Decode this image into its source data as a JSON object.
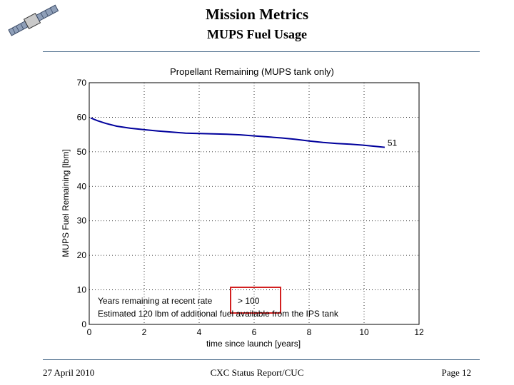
{
  "slide": {
    "title": "Mission Metrics",
    "subtitle": "MUPS Fuel Usage",
    "footer_left": "27 April 2010",
    "footer_center": "CXC Status Report/CUC",
    "footer_right": "Page 12",
    "logo_icon": "satellite-icon"
  },
  "colors": {
    "rule": "#4a6a8a",
    "series": "#00009c",
    "highlight_box": "#d22020",
    "grid": "#000000"
  },
  "chart_data": {
    "type": "line",
    "title": "Propellant Remaining (MUPS tank only)",
    "xlabel": "time since launch [years]",
    "ylabel": "MUPS Fuel Remaining [lbm]",
    "xlim": [
      0,
      12
    ],
    "ylim": [
      0,
      70
    ],
    "xticks": [
      0,
      2,
      4,
      6,
      8,
      10,
      12
    ],
    "yticks": [
      0,
      10,
      20,
      30,
      40,
      50,
      60,
      70
    ],
    "xtick_labels": [
      "0",
      "2",
      "4",
      "6",
      "8",
      "10",
      "12"
    ],
    "ytick_labels": [
      "0",
      "10",
      "20",
      "30",
      "40",
      "50",
      "60",
      "70"
    ],
    "grid": true,
    "series": [
      {
        "name": "MUPS fuel remaining",
        "x": [
          0.05,
          0.3,
          0.6,
          1.0,
          1.5,
          2.0,
          2.5,
          3.0,
          3.5,
          4.0,
          4.5,
          5.0,
          5.5,
          6.0,
          6.5,
          7.0,
          7.5,
          8.0,
          8.5,
          9.0,
          9.5,
          10.0,
          10.5,
          10.75
        ],
        "y": [
          59.8,
          59.0,
          58.2,
          57.4,
          56.8,
          56.4,
          56.0,
          55.7,
          55.4,
          55.3,
          55.2,
          55.1,
          54.9,
          54.6,
          54.3,
          54.0,
          53.6,
          53.1,
          52.7,
          52.4,
          52.2,
          51.9,
          51.5,
          51.3
        ]
      }
    ],
    "end_label": "51",
    "annotations": {
      "line1_prefix": "Years remaining at recent rate",
      "line1_value": "> 100",
      "line2": "Estimated 120 lbm of additional fuel available from the IPS tank"
    }
  }
}
